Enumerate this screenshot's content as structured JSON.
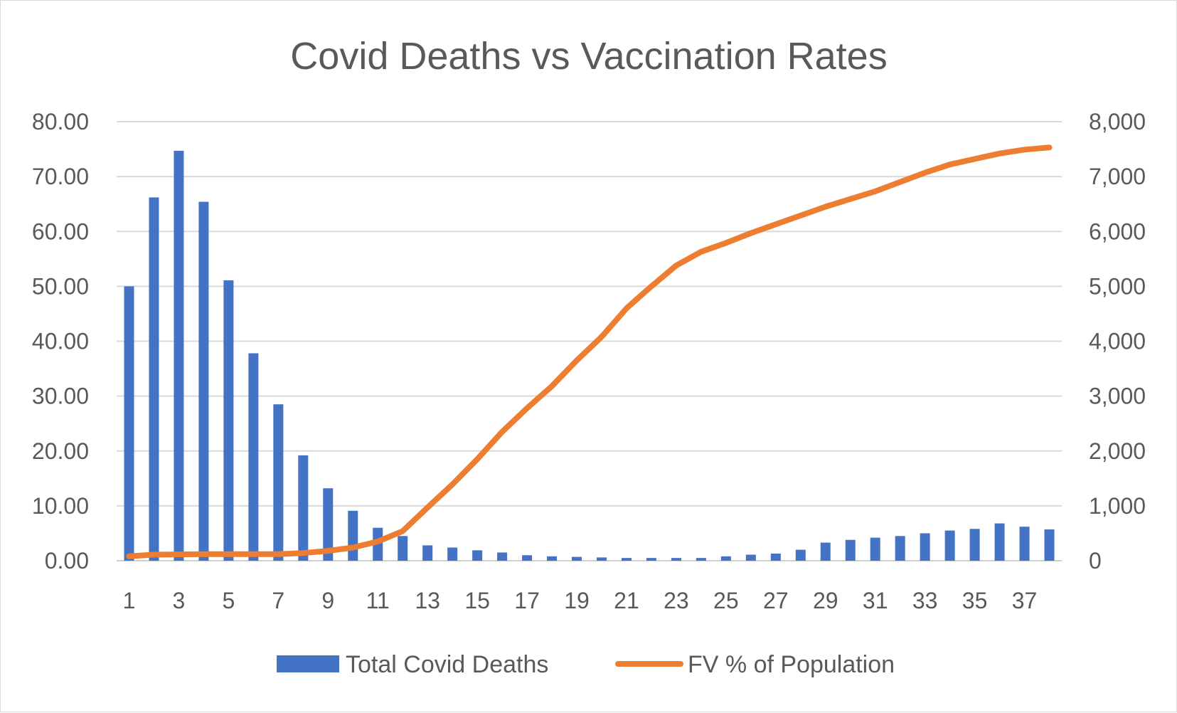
{
  "chart_data": {
    "type": "bar+line",
    "title": "Covid Deaths vs Vaccination Rates",
    "xlabel": "",
    "ylabel": "",
    "y2label": "",
    "categories": [
      1,
      2,
      3,
      4,
      5,
      6,
      7,
      8,
      9,
      10,
      11,
      12,
      13,
      14,
      15,
      16,
      17,
      18,
      19,
      20,
      21,
      22,
      23,
      24,
      25,
      26,
      27,
      28,
      29,
      30,
      31,
      32,
      33,
      34,
      35,
      36,
      37,
      38
    ],
    "x_tick_labels": [
      "1",
      "3",
      "5",
      "7",
      "9",
      "11",
      "13",
      "15",
      "17",
      "19",
      "21",
      "23",
      "25",
      "27",
      "29",
      "31",
      "33",
      "35",
      "37"
    ],
    "y_left": {
      "ylim": [
        0,
        80
      ],
      "ticks": [
        "0.00",
        "10.00",
        "20.00",
        "30.00",
        "40.00",
        "50.00",
        "60.00",
        "70.00",
        "80.00"
      ]
    },
    "y_right": {
      "ylim": [
        0,
        8000
      ],
      "ticks": [
        "0",
        "1,000",
        "2,000",
        "3,000",
        "4,000",
        "5,000",
        "6,000",
        "7,000",
        "8,000"
      ]
    },
    "grid": true,
    "legend_position": "bottom",
    "series": [
      {
        "name": "Total Covid Deaths",
        "type": "bar",
        "axis": "left",
        "color": "#4472C4",
        "values": [
          50,
          66.2,
          74.7,
          65.4,
          51.1,
          37.8,
          28.5,
          19.2,
          13.2,
          9.1,
          6.0,
          4.5,
          2.8,
          2.4,
          1.9,
          1.5,
          1.0,
          0.8,
          0.7,
          0.6,
          0.5,
          0.5,
          0.5,
          0.5,
          0.8,
          1.1,
          1.3,
          2.0,
          3.3,
          3.8,
          4.2,
          4.5,
          5.0,
          5.5,
          5.8,
          6.8,
          6.2,
          5.7
        ]
      },
      {
        "name": "FV % of Population",
        "type": "line",
        "axis": "right",
        "color": "#ED7D31",
        "values": [
          80,
          110,
          115,
          120,
          120,
          120,
          120,
          140,
          180,
          240,
          350,
          540,
          970,
          1390,
          1850,
          2350,
          2780,
          3180,
          3650,
          4080,
          4600,
          5000,
          5380,
          5630,
          5790,
          5970,
          6130,
          6290,
          6450,
          6590,
          6730,
          6900,
          7070,
          7220,
          7320,
          7420,
          7490,
          7530
        ]
      }
    ]
  }
}
